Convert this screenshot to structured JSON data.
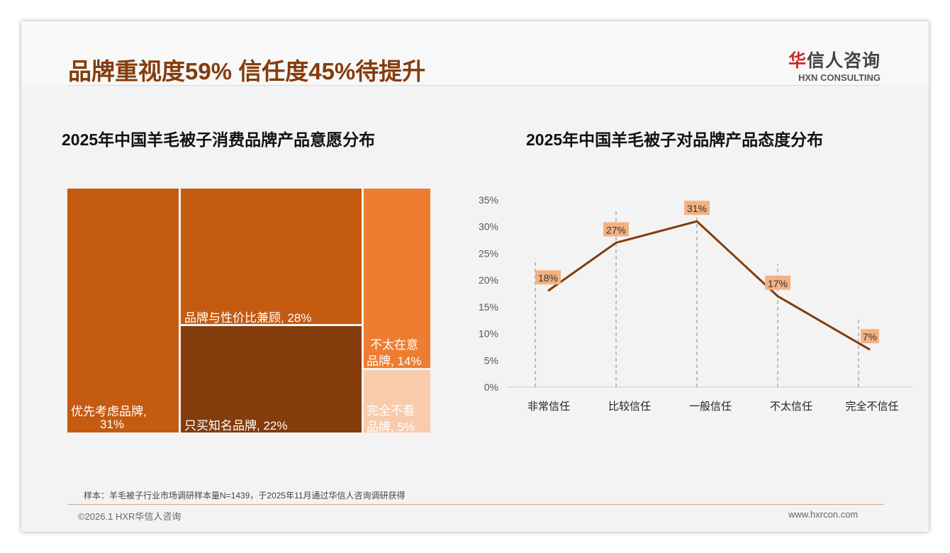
{
  "title": "品牌重视度59% 信任度45%待提升",
  "logo": {
    "cn_mark": "华",
    "cn_rest": "信人咨询",
    "en": "HXN CONSULTING"
  },
  "footer": {
    "note": "样本：羊毛被子行业市场调研样本量N=1439，于2025年11月通过华信人咨询调研获得",
    "copyright": "©2026.1 HXR华信人咨询",
    "url": "www.hxrcon.com"
  },
  "colors": {
    "primary": "#c55a11",
    "dark": "#843c0c",
    "light": "#ed7d31",
    "pale": "#f8cbad",
    "line": "#843c0c",
    "label_bg": "#f4b183"
  },
  "chart_data": [
    {
      "type": "treemap",
      "title": "2025年中国羊毛被子消费品牌产品意愿分布",
      "items": [
        {
          "label_a": "优先考虑品牌,",
          "label_b": "31%",
          "name": "优先考虑品牌",
          "value": 31
        },
        {
          "label_a": "品牌与性价比兼顾, 28%",
          "name": "品牌与性价比兼顾",
          "value": 28
        },
        {
          "label_a": "只买知名品牌, 22%",
          "name": "只买知名品牌",
          "value": 22
        },
        {
          "label_a": "不太在意",
          "label_b": "品牌, 14%",
          "name": "不太在意品牌",
          "value": 14
        },
        {
          "label_a": "完全不看",
          "label_b": "品牌, 5%",
          "name": "完全不看品牌",
          "value": 5
        }
      ]
    },
    {
      "type": "line",
      "title": "2025年中国羊毛被子对品牌产品态度分布",
      "categories": [
        "非常信任",
        "比较信任",
        "一般信任",
        "不太信任",
        "完全不信任"
      ],
      "values": [
        18,
        27,
        31,
        17,
        7
      ],
      "labels": [
        "18%",
        "27%",
        "31%",
        "17%",
        "7%"
      ],
      "ylim": [
        0,
        35
      ],
      "yticks": [
        "0%",
        "5%",
        "10%",
        "15%",
        "20%",
        "25%",
        "30%",
        "35%"
      ]
    }
  ]
}
